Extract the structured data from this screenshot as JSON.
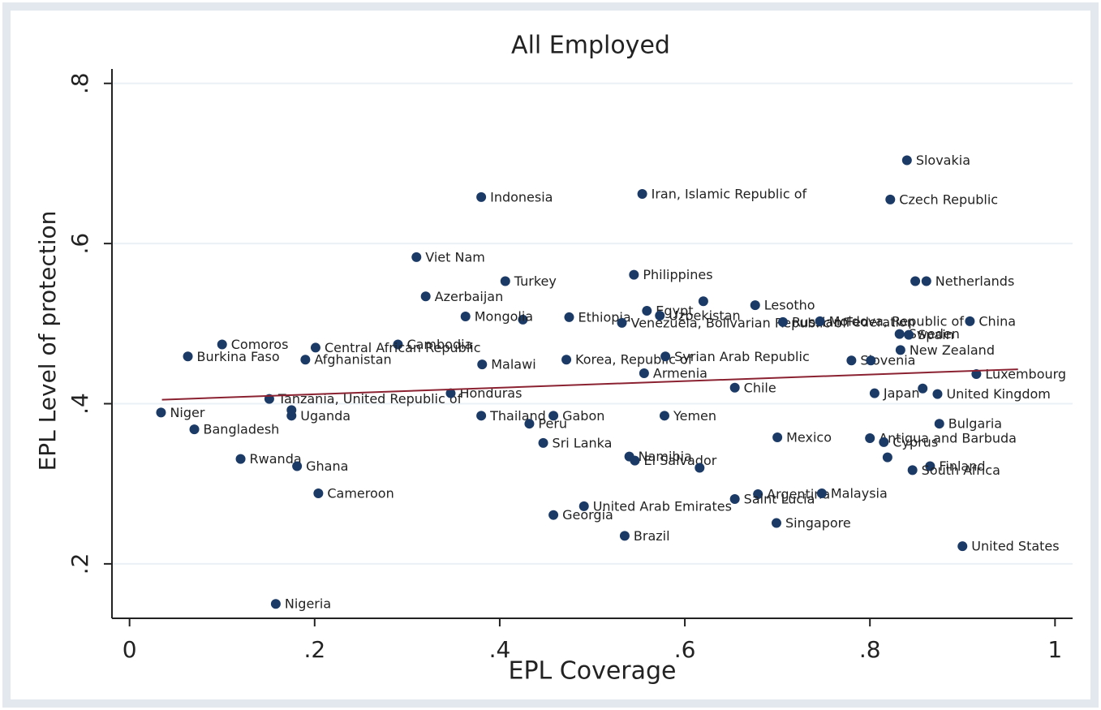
{
  "chart_data": {
    "type": "scatter",
    "title": "All Employed",
    "x_label": "EPL Coverage",
    "y_label": "EPL Level of protection",
    "color": "#1b3a66",
    "x": [
      0.84,
      0.554,
      0.822,
      0.38,
      0.31,
      0.545,
      0.849,
      0.861,
      0.32,
      0.406,
      0.425,
      0.363,
      0.29,
      0.1,
      0.201,
      0.063,
      0.19,
      0.381,
      0.472,
      0.475,
      0.532,
      0.559,
      0.573,
      0.62,
      0.676,
      0.706,
      0.746,
      0.908,
      0.832,
      0.842,
      0.833,
      0.579,
      0.556,
      0.78,
      0.801,
      0.915,
      0.654,
      0.805,
      0.857,
      0.873,
      0.151,
      0.347,
      0.034,
      0.175,
      0.175,
      0.38,
      0.458,
      0.578,
      0.875,
      0.07,
      0.432,
      0.447,
      0.7,
      0.8,
      0.815,
      0.865,
      0.819,
      0.54,
      0.546,
      0.616,
      0.12,
      0.181,
      0.846,
      0.679,
      0.654,
      0.748,
      0.204,
      0.491,
      0.458,
      0.699,
      0.535,
      0.9,
      0.158
    ],
    "values": [
      0.704,
      0.662,
      0.655,
      0.658,
      0.583,
      0.561,
      0.553,
      0.553,
      0.534,
      0.553,
      0.505,
      0.509,
      0.474,
      0.474,
      0.47,
      0.459,
      0.455,
      0.449,
      0.455,
      0.508,
      0.501,
      0.516,
      0.51,
      0.528,
      0.523,
      0.502,
      0.503,
      0.503,
      0.487,
      0.486,
      0.467,
      0.459,
      0.438,
      0.454,
      0.454,
      0.437,
      0.42,
      0.413,
      0.419,
      0.412,
      0.406,
      0.413,
      0.389,
      0.385,
      0.392,
      0.385,
      0.385,
      0.385,
      0.375,
      0.368,
      0.375,
      0.351,
      0.358,
      0.357,
      0.352,
      0.322,
      0.333,
      0.334,
      0.329,
      0.32,
      0.331,
      0.322,
      0.317,
      0.287,
      0.281,
      0.288,
      0.288,
      0.272,
      0.261,
      0.251,
      0.235,
      0.222,
      0.15
    ],
    "labels": [
      "Slovakia",
      "Iran, Islamic Republic of",
      "Czech Republic",
      "Indonesia",
      "Viet Nam",
      "Philippines",
      null,
      "Netherlands",
      "Azerbaijan",
      "Turkey",
      null,
      "Mongolia",
      "Cambodia",
      "Comoros",
      "Central African Republic",
      "Burkina Faso",
      "Afghanistan",
      "Malawi",
      "Korea, Republic of",
      "Ethiopia",
      "Venezuela, Bolivarian Republic of",
      "Egypt",
      "Uzbekistan",
      null,
      "Lesotho",
      "Russian Federation",
      "Moldova, Republic of",
      "China",
      "Sweden",
      "Spain",
      "New Zealand",
      "Syrian Arab Republic",
      "Armenia",
      "Slovenia",
      null,
      "Luxembourg",
      "Chile",
      "Japan",
      null,
      "United Kingdom",
      "Tanzania, United Republic of",
      "Honduras",
      "Niger",
      "Uganda",
      null,
      "Thailand",
      "Gabon",
      "Yemen",
      "Bulgaria",
      "Bangladesh",
      "Peru",
      "Sri Lanka",
      "Mexico",
      "Antigua and Barbuda",
      "Cyprus",
      "Finland",
      null,
      "Namibia",
      "El Salvador",
      null,
      "Rwanda",
      "Ghana",
      "South Africa",
      "Argentina",
      "Saint Lucia",
      "Malaysia",
      "Cameroon",
      "United Arab Emirates",
      "Georgia",
      "Singapore",
      "Brazil",
      "United States",
      "Nigeria"
    ],
    "fit_line": {
      "x": [
        0.035,
        0.96
      ],
      "values": [
        0.405,
        0.443
      ],
      "color": "#8b2232"
    },
    "xlim": [
      -0.019,
      1.019
    ],
    "ylim": [
      0.132,
      0.818
    ],
    "xticks": [
      0,
      {
        "value": 0.2,
        "label": ".2"
      },
      {
        "value": 0.4,
        "label": ".4"
      },
      {
        "value": 0.6,
        "label": ".6"
      },
      {
        "value": 0.8,
        "label": ".8"
      },
      1
    ],
    "yticks": [
      {
        "value": 0.2,
        "label": ".2"
      },
      {
        "value": 0.4,
        "label": ".4"
      },
      {
        "value": 0.6,
        "label": ".6"
      },
      {
        "value": 0.8,
        "label": ".8"
      }
    ],
    "grid": true
  }
}
